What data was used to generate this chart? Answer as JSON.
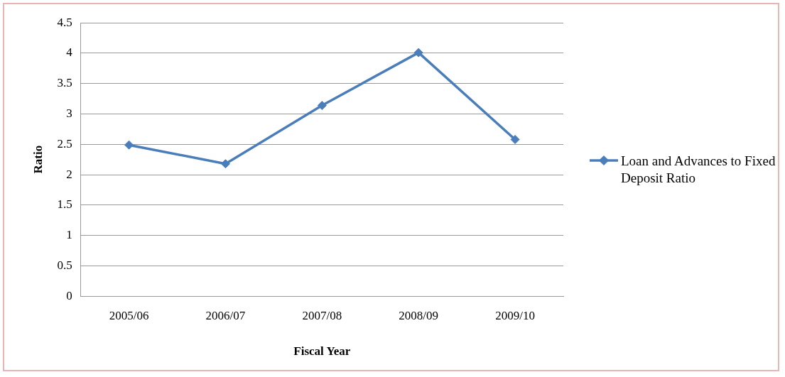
{
  "chart_data": {
    "type": "line",
    "xlabel": "Fiscal Year",
    "ylabel": "Ratio",
    "categories": [
      "2005/06",
      "2006/07",
      "2007/08",
      "2008/09",
      "2009/10"
    ],
    "series": [
      {
        "name": "Loan and Advances to Fixed Deposit Ratio",
        "color": "#4a7ebb",
        "values": [
          2.49,
          2.18,
          3.14,
          4.01,
          2.58
        ]
      }
    ],
    "ylim": [
      0,
      4.5
    ],
    "yticks": [
      0,
      0.5,
      1,
      1.5,
      2,
      2.5,
      3,
      3.5,
      4,
      4.5
    ],
    "grid": "y",
    "legend": "right",
    "marker": "diamond",
    "line_style": "solid"
  }
}
